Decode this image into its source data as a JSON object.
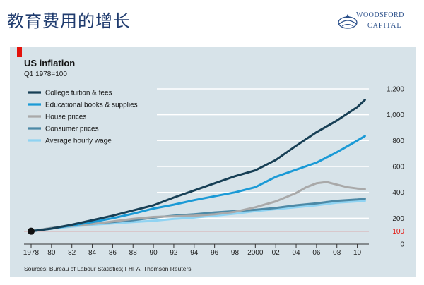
{
  "slide": {
    "title": "教育费用的增长",
    "logo_line1": "WOODSFORD",
    "logo_line2": "CAPITAL"
  },
  "chart_data": {
    "type": "line",
    "title": "US inflation",
    "subtitle": "Q1 1978=100",
    "source": "Sources: Bureau of Labour Statistics; FHFA; Thomson Reuters",
    "xlim": [
      1978,
      2011
    ],
    "ylim": [
      0,
      1200
    ],
    "x_ticks": [
      1978,
      1980,
      1982,
      1984,
      1986,
      1988,
      1990,
      1992,
      1994,
      1996,
      1998,
      2000,
      2002,
      2004,
      2006,
      2008,
      2010
    ],
    "x_tick_labels": [
      "1978",
      "80",
      "82",
      "84",
      "86",
      "88",
      "90",
      "92",
      "94",
      "96",
      "98",
      "2000",
      "02",
      "04",
      "06",
      "08",
      "10"
    ],
    "y_ticks": [
      0,
      200,
      400,
      600,
      800,
      1000,
      1200
    ],
    "y_tick_labels": [
      "0",
      "200",
      "400",
      "600",
      "800",
      "1,000",
      "1,200"
    ],
    "baseline_value": 100,
    "baseline_label": "100",
    "series": [
      {
        "name": "College tuition & fees",
        "color": "#173f55",
        "x": [
          1978,
          1980,
          1982,
          1984,
          1986,
          1988,
          1990,
          1992,
          1994,
          1996,
          1998,
          2000,
          2002,
          2004,
          2006,
          2008,
          2010,
          2010.75
        ],
        "y": [
          100,
          120,
          150,
          185,
          220,
          260,
          300,
          360,
          415,
          470,
          525,
          570,
          650,
          760,
          865,
          955,
          1060,
          1115
        ]
      },
      {
        "name": "Educational books & supplies",
        "color": "#1b9ad6",
        "x": [
          1978,
          1980,
          1982,
          1984,
          1986,
          1988,
          1990,
          1992,
          1994,
          1996,
          1998,
          2000,
          2002,
          2004,
          2006,
          2008,
          2010,
          2010.75
        ],
        "y": [
          100,
          120,
          145,
          170,
          200,
          235,
          275,
          305,
          340,
          370,
          400,
          440,
          520,
          575,
          630,
          710,
          800,
          835
        ]
      },
      {
        "name": "House prices",
        "color": "#a9a9a9",
        "x": [
          1978,
          1980,
          1982,
          1984,
          1986,
          1988,
          1990,
          1992,
          1994,
          1996,
          1998,
          2000,
          2002,
          2004,
          2005,
          2006,
          2007,
          2008,
          2009,
          2010,
          2010.75
        ],
        "y": [
          100,
          125,
          140,
          155,
          175,
          195,
          210,
          215,
          220,
          230,
          250,
          285,
          330,
          395,
          440,
          470,
          480,
          460,
          440,
          430,
          425
        ]
      },
      {
        "name": "Consumer prices",
        "color": "#4c89a6",
        "x": [
          1978,
          1980,
          1982,
          1984,
          1986,
          1988,
          1990,
          1992,
          1994,
          1996,
          1998,
          2000,
          2002,
          2004,
          2006,
          2008,
          2010,
          2010.75
        ],
        "y": [
          100,
          125,
          145,
          160,
          170,
          185,
          205,
          220,
          230,
          245,
          255,
          265,
          280,
          300,
          315,
          335,
          345,
          350
        ]
      },
      {
        "name": "Average hourly wage",
        "color": "#8fd3f2",
        "x": [
          1978,
          1980,
          1982,
          1984,
          1986,
          1988,
          1990,
          1992,
          1994,
          1996,
          1998,
          2000,
          2002,
          2004,
          2006,
          2008,
          2010,
          2010.75
        ],
        "y": [
          100,
          120,
          135,
          150,
          160,
          170,
          180,
          195,
          205,
          220,
          235,
          255,
          270,
          285,
          300,
          320,
          330,
          335
        ]
      }
    ]
  }
}
